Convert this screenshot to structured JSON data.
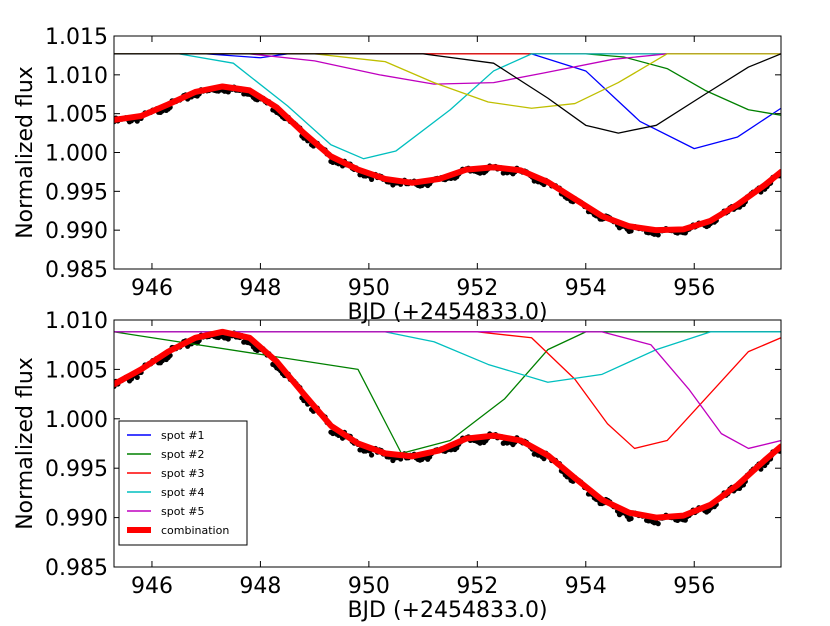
{
  "chart_data": [
    {
      "type": "line",
      "xlabel": "BJD (+2454833.0)",
      "ylabel": "Normalized flux",
      "xlim": [
        945.3,
        957.6
      ],
      "ylim": [
        0.985,
        1.015
      ],
      "xticks": [
        946,
        948,
        950,
        952,
        954,
        956
      ],
      "yticks": [
        0.985,
        0.99,
        0.995,
        1.0,
        1.005,
        1.01,
        1.015
      ],
      "ytick_labels": [
        "0.985",
        "0.990",
        "0.995",
        "1.000",
        "1.005",
        "1.010",
        "1.015"
      ],
      "grid": false,
      "observed": {
        "x": [
          945.3,
          945.8,
          946.3,
          946.8,
          947.3,
          947.8,
          948.3,
          948.8,
          949.3,
          949.8,
          950.3,
          950.8,
          951.3,
          951.8,
          952.3,
          952.8,
          953.3,
          953.8,
          954.3,
          954.8,
          955.3,
          955.8,
          956.3,
          956.8,
          957.3,
          957.6
        ],
        "y": [
          1.0042,
          1.0047,
          1.0062,
          1.0078,
          1.0085,
          1.008,
          1.0058,
          1.0025,
          0.9995,
          0.9978,
          0.9966,
          0.9961,
          0.9966,
          0.9978,
          0.9981,
          0.9977,
          0.9962,
          0.994,
          0.9918,
          0.9905,
          0.99,
          0.9901,
          0.9912,
          0.9933,
          0.9958,
          0.9975
        ]
      },
      "series": [
        {
          "name": "",
          "color": "#0000ff",
          "x": [
            945.3,
            947.0,
            948.0,
            948.5,
            949.5,
            951.0,
            952.0,
            953.0,
            954.0,
            955.0,
            956.0,
            956.8,
            957.6
          ],
          "values": [
            1.0127,
            1.0127,
            1.0122,
            1.0127,
            1.0127,
            1.0127,
            1.0127,
            1.0127,
            1.0105,
            1.004,
            1.0005,
            1.002,
            1.0057
          ]
        },
        {
          "name": "",
          "color": "#008000",
          "x": [
            945.3,
            954.0,
            954.7,
            955.5,
            956.2,
            957.0,
            957.6
          ],
          "values": [
            1.0127,
            1.0127,
            1.0123,
            1.0108,
            1.008,
            1.0055,
            1.0048
          ]
        },
        {
          "name": "",
          "color": "#ff0000",
          "x": [
            945.3,
            957.6
          ],
          "values": [
            1.0127,
            1.0127
          ]
        },
        {
          "name": "",
          "color": "#00bfbf",
          "x": [
            945.3,
            946.5,
            947.5,
            948.5,
            949.3,
            949.9,
            950.5,
            951.5,
            952.3,
            953.0,
            957.6
          ],
          "values": [
            1.0127,
            1.0127,
            1.0115,
            1.006,
            1.001,
            0.9992,
            1.0002,
            1.0055,
            1.0105,
            1.0127,
            1.0127
          ]
        },
        {
          "name": "",
          "color": "#bf00bf",
          "x": [
            945.3,
            947.8,
            949.0,
            950.2,
            951.2,
            952.3,
            953.2,
            954.5,
            955.5,
            957.6
          ],
          "values": [
            1.0127,
            1.0127,
            1.0118,
            1.01,
            1.0088,
            1.009,
            1.0102,
            1.012,
            1.0127,
            1.0127
          ]
        },
        {
          "name": "",
          "color": "#bfbf00",
          "x": [
            945.3,
            949.0,
            950.3,
            951.2,
            952.2,
            953.0,
            953.8,
            954.6,
            955.5,
            957.6
          ],
          "values": [
            1.0127,
            1.0127,
            1.0117,
            1.009,
            1.0065,
            1.0057,
            1.0063,
            1.009,
            1.0127,
            1.0127
          ]
        },
        {
          "name": "",
          "color": "#000000",
          "x": [
            945.3,
            951.0,
            952.3,
            953.3,
            954.0,
            954.6,
            955.3,
            956.2,
            957.0,
            957.6
          ],
          "values": [
            1.0127,
            1.0127,
            1.0115,
            1.007,
            1.0035,
            1.0025,
            1.0035,
            1.0075,
            1.011,
            1.0127
          ]
        },
        {
          "name": "",
          "color": "#ff0000",
          "linewidth": 6,
          "x": [
            945.3,
            945.8,
            946.3,
            946.8,
            947.3,
            947.8,
            948.3,
            948.8,
            949.3,
            949.8,
            950.3,
            950.8,
            951.3,
            951.8,
            952.3,
            952.8,
            953.3,
            953.8,
            954.3,
            954.8,
            955.3,
            955.8,
            956.3,
            956.8,
            957.3,
            957.6
          ],
          "values": [
            1.0042,
            1.0047,
            1.0062,
            1.0078,
            1.0085,
            1.008,
            1.0058,
            1.0025,
            0.9995,
            0.9978,
            0.9966,
            0.9961,
            0.9966,
            0.9978,
            0.9981,
            0.9977,
            0.9962,
            0.994,
            0.9918,
            0.9905,
            0.99,
            0.9901,
            0.9912,
            0.9933,
            0.9958,
            0.9975
          ]
        }
      ]
    },
    {
      "type": "line",
      "xlabel": "BJD (+2454833.0)",
      "ylabel": "Normalized flux",
      "xlim": [
        945.3,
        957.6
      ],
      "ylim": [
        0.985,
        1.01
      ],
      "xticks": [
        946,
        948,
        950,
        952,
        954,
        956
      ],
      "yticks": [
        0.985,
        0.99,
        0.995,
        1.0,
        1.005,
        1.01
      ],
      "ytick_labels": [
        "0.985",
        "0.990",
        "0.995",
        "1.000",
        "1.005",
        "1.010"
      ],
      "grid": false,
      "legend_position": "lower-left",
      "observed": {
        "x": [
          945.3,
          945.8,
          946.3,
          946.8,
          947.3,
          947.8,
          948.3,
          948.8,
          949.3,
          949.8,
          950.3,
          950.8,
          951.3,
          951.8,
          952.3,
          952.8,
          953.3,
          953.8,
          954.3,
          954.8,
          955.3,
          955.8,
          956.3,
          956.8,
          957.3,
          957.6
        ],
        "y": [
          1.0035,
          1.005,
          1.0068,
          1.0082,
          1.0088,
          1.0082,
          1.0058,
          1.0025,
          0.9993,
          0.9975,
          0.9965,
          0.9962,
          0.9968,
          0.998,
          0.9983,
          0.9978,
          0.9963,
          0.994,
          0.9918,
          0.9905,
          0.99,
          0.9902,
          0.9913,
          0.9933,
          0.9958,
          0.9972
        ]
      },
      "series": [
        {
          "name": "spot #1",
          "color": "#0000ff",
          "x": [
            945.3,
            957.6
          ],
          "values": [
            1.0088,
            1.0088
          ]
        },
        {
          "name": "spot #2",
          "color": "#008000",
          "x": [
            945.3,
            949.8,
            950.6,
            951.5,
            952.5,
            953.3,
            954.0,
            957.6
          ],
          "values": [
            1.0088,
            1.005,
            0.9965,
            0.9978,
            1.002,
            1.007,
            1.0088,
            1.0088
          ]
        },
        {
          "name": "spot #3",
          "color": "#ff0000",
          "x": [
            945.3,
            952.0,
            953.0,
            953.8,
            954.4,
            954.9,
            955.5,
            956.2,
            957.0,
            957.6
          ],
          "values": [
            1.0088,
            1.0088,
            1.0082,
            1.004,
            0.9995,
            0.997,
            0.9978,
            1.002,
            1.0068,
            1.0082
          ]
        },
        {
          "name": "spot #4",
          "color": "#00bfbf",
          "x": [
            945.3,
            950.3,
            951.2,
            952.2,
            953.3,
            954.3,
            955.3,
            956.3,
            957.6
          ],
          "values": [
            1.0088,
            1.0088,
            1.0078,
            1.0055,
            1.0037,
            1.0045,
            1.007,
            1.0088,
            1.0088
          ]
        },
        {
          "name": "spot #5",
          "color": "#bf00bf",
          "x": [
            945.3,
            954.3,
            955.2,
            955.9,
            956.5,
            957.0,
            957.6
          ],
          "values": [
            1.0088,
            1.0088,
            1.0075,
            1.003,
            0.9985,
            0.997,
            0.9978
          ]
        },
        {
          "name": "combination",
          "color": "#ff0000",
          "linewidth": 6,
          "x": [
            945.3,
            945.8,
            946.3,
            946.8,
            947.3,
            947.8,
            948.3,
            948.8,
            949.3,
            949.8,
            950.3,
            950.8,
            951.3,
            951.8,
            952.3,
            952.8,
            953.3,
            953.8,
            954.3,
            954.8,
            955.3,
            955.8,
            956.3,
            956.8,
            957.3,
            957.6
          ],
          "values": [
            1.0035,
            1.005,
            1.0068,
            1.0082,
            1.0088,
            1.0082,
            1.0058,
            1.0025,
            0.9993,
            0.9975,
            0.9965,
            0.9962,
            0.9968,
            0.998,
            0.9983,
            0.9978,
            0.9963,
            0.994,
            0.9918,
            0.9905,
            0.99,
            0.9902,
            0.9913,
            0.9933,
            0.9958,
            0.9972
          ]
        }
      ]
    }
  ]
}
